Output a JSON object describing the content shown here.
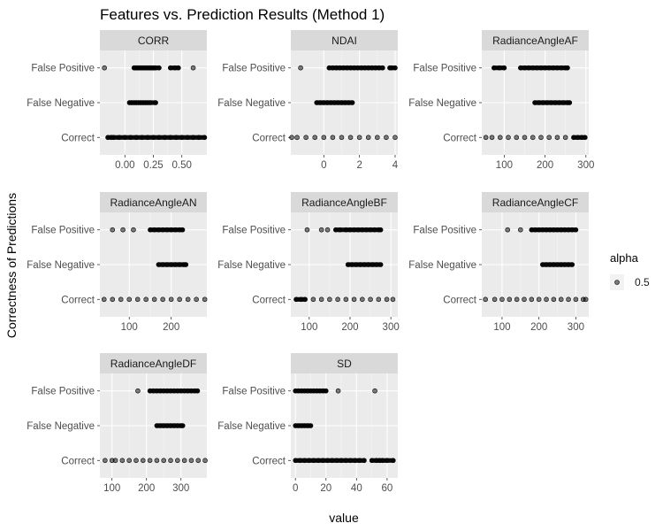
{
  "chart_data": {
    "type": "scatter",
    "title": "Features vs. Prediction Results (Method 1)",
    "xlabel": "value",
    "ylabel": "Correctness of Predictions",
    "categories": [
      "Correct",
      "False Negative",
      "False Positive"
    ],
    "legend": {
      "title": "alpha",
      "label": "0.5",
      "position": "right"
    },
    "grid": true,
    "facets": [
      {
        "name": "CORR",
        "xlim": [
          -0.22,
          0.72
        ],
        "xticks": [
          0.0,
          0.25,
          0.5
        ],
        "xtick_labels": [
          "0.00",
          "0.25",
          "0.50"
        ],
        "points": {
          "False Positive": [
            -0.18,
            0.08,
            0.09,
            0.1,
            0.11,
            0.12,
            0.13,
            0.14,
            0.15,
            0.16,
            0.17,
            0.18,
            0.19,
            0.2,
            0.21,
            0.22,
            0.23,
            0.24,
            0.25,
            0.26,
            0.27,
            0.3,
            0.4,
            0.44,
            0.47,
            0.6
          ],
          "False Negative": [
            0.04,
            0.06,
            0.08,
            0.1,
            0.12,
            0.14,
            0.16,
            0.18,
            0.2,
            0.22,
            0.27
          ],
          "Correct": [
            -0.15,
            -0.12,
            -0.1,
            -0.05,
            0.0,
            0.05,
            0.1,
            0.15,
            0.2,
            0.25,
            0.3,
            0.35,
            0.4,
            0.45,
            0.5,
            0.55,
            0.6,
            0.65,
            0.7
          ]
        }
      },
      {
        "name": "NDAI",
        "xlim": [
          -1.85,
          4.15
        ],
        "xticks": [
          0,
          2,
          4
        ],
        "xtick_labels": [
          "0",
          "2",
          "4"
        ],
        "points": {
          "False Positive": [
            -1.3,
            0.3,
            0.5,
            0.7,
            0.9,
            1.1,
            1.3,
            1.5,
            1.7,
            1.9,
            2.1,
            2.3,
            2.5,
            2.7,
            2.9,
            3.1,
            3.3,
            3.7,
            3.8,
            4.0
          ],
          "False Negative": [
            -0.4,
            -0.2,
            0.0,
            0.2,
            0.4,
            0.6,
            0.8,
            1.0,
            1.2,
            1.4,
            1.6
          ],
          "Correct": [
            -1.8,
            -1.5,
            -1.0,
            -0.5,
            0.0,
            0.5,
            1.0,
            1.5,
            2.0,
            2.5,
            3.0,
            3.5,
            4.0
          ]
        }
      },
      {
        "name": "RadianceAngleAF",
        "xlim": [
          45,
          307
        ],
        "xticks": [
          100,
          200,
          300
        ],
        "xtick_labels": [
          "100",
          "200",
          "300"
        ],
        "points": {
          "False Positive": [
            75,
            88,
            100,
            140,
            150,
            160,
            170,
            180,
            190,
            200,
            210,
            220,
            230,
            240,
            250,
            255
          ],
          "False Negative": [
            175,
            185,
            195,
            205,
            215,
            225,
            235,
            245,
            255,
            260
          ],
          "Correct": [
            55,
            70,
            90,
            110,
            130,
            150,
            170,
            190,
            210,
            230,
            250,
            270,
            280,
            290,
            298
          ]
        }
      },
      {
        "name": "RadianceAngleAN",
        "xlim": [
          30,
          285
        ],
        "xticks": [
          100,
          200
        ],
        "xtick_labels": [
          "100",
          "200"
        ],
        "points": {
          "False Positive": [
            60,
            85,
            110,
            150,
            160,
            170,
            180,
            190,
            200,
            210,
            220,
            227
          ],
          "False Negative": [
            170,
            180,
            190,
            200,
            210,
            220,
            230,
            235
          ],
          "Correct": [
            40,
            60,
            80,
            100,
            120,
            140,
            160,
            180,
            200,
            220,
            240,
            260,
            280
          ]
        }
      },
      {
        "name": "RadianceAngleBF",
        "xlim": [
          55,
          317
        ],
        "xticks": [
          100,
          200,
          300
        ],
        "xtick_labels": [
          "100",
          "200",
          "300"
        ],
        "points": {
          "False Positive": [
            95,
            130,
            145,
            165,
            175,
            190,
            200,
            210,
            220,
            230,
            240,
            250,
            260,
            270,
            275
          ],
          "False Negative": [
            195,
            205,
            215,
            225,
            235,
            245,
            255,
            265,
            275
          ],
          "Correct": [
            68,
            80,
            90,
            110,
            130,
            150,
            170,
            190,
            210,
            230,
            250,
            270,
            290,
            305
          ]
        }
      },
      {
        "name": "RadianceAngleCF",
        "xlim": [
          45,
          335
        ],
        "xticks": [
          100,
          200,
          300
        ],
        "xtick_labels": [
          "100",
          "200",
          "300"
        ],
        "points": {
          "False Positive": [
            115,
            150,
            180,
            190,
            200,
            210,
            220,
            230,
            240,
            250,
            260,
            270,
            280,
            290,
            300
          ],
          "False Negative": [
            210,
            220,
            230,
            240,
            250,
            260,
            270,
            280,
            290
          ],
          "Correct": [
            55,
            80,
            100,
            120,
            140,
            160,
            180,
            200,
            220,
            240,
            260,
            280,
            300,
            320,
            327
          ]
        }
      },
      {
        "name": "RadianceAngleDF",
        "xlim": [
          65,
          375
        ],
        "xticks": [
          100,
          200,
          300
        ],
        "xtick_labels": [
          "100",
          "200",
          "300"
        ],
        "points": {
          "False Positive": [
            175,
            210,
            220,
            230,
            240,
            250,
            260,
            270,
            280,
            290,
            300,
            310,
            320,
            330,
            340,
            348
          ],
          "False Negative": [
            230,
            240,
            250,
            260,
            270,
            280,
            290,
            300,
            305
          ],
          "Correct": [
            80,
            100,
            110,
            130,
            150,
            170,
            190,
            210,
            230,
            250,
            270,
            290,
            310,
            330,
            350,
            370
          ]
        }
      },
      {
        "name": "SD",
        "xlim": [
          -3,
          67
        ],
        "xticks": [
          0,
          20,
          40,
          60
        ],
        "xtick_labels": [
          "0",
          "20",
          "40",
          "60"
        ],
        "points": {
          "False Positive": [
            0,
            2,
            4,
            6,
            8,
            10,
            12,
            14,
            16,
            18,
            20,
            28,
            52
          ],
          "False Negative": [
            0,
            2,
            4,
            6,
            8,
            10
          ],
          "Correct": [
            0,
            3,
            6,
            9,
            12,
            15,
            18,
            21,
            24,
            27,
            30,
            33,
            36,
            39,
            42,
            45,
            50,
            53,
            55,
            57,
            60,
            64
          ]
        }
      }
    ]
  }
}
